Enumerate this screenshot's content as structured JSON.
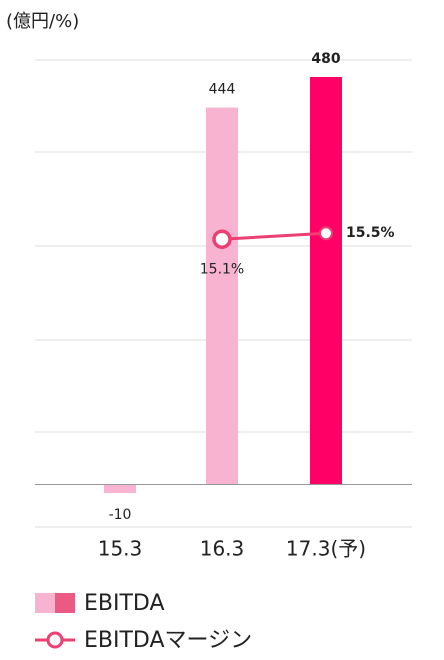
{
  "chart_data": {
    "type": "bar",
    "unit_label": "(億円/%)",
    "categories": [
      "15.3",
      "16.3",
      "17.3(予)"
    ],
    "ylim": [
      -50,
      500
    ],
    "y2lim": [
      -4,
      27
    ],
    "grid": true,
    "series": [
      {
        "name": "EBITDA",
        "type": "bar",
        "values": [
          -10,
          444,
          480
        ],
        "colors": [
          "#f7b3cf",
          "#f7b3cf",
          "#ff0066"
        ],
        "legend_colors": [
          "#f7b3cf",
          "#ea5a82"
        ]
      },
      {
        "name": "EBITDAマージン",
        "type": "line",
        "axis": "y2",
        "color": "#ec3f73",
        "values": [
          null,
          15.1,
          15.5
        ],
        "value_labels": [
          null,
          "15.1%",
          "15.5%"
        ]
      }
    ]
  }
}
